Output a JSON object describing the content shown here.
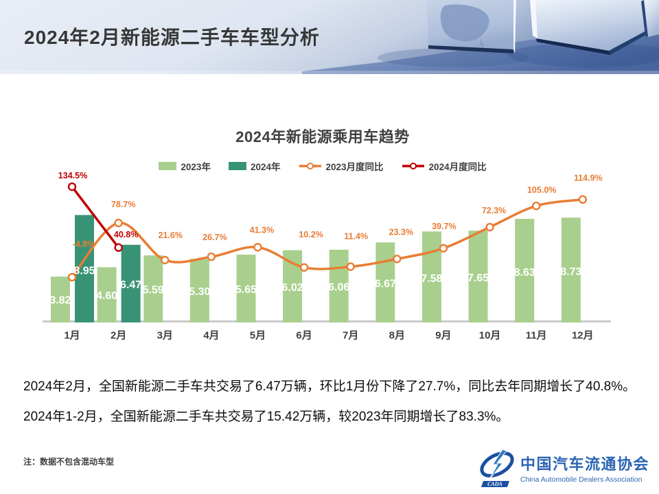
{
  "header": {
    "title": "2024年2月新能源二手车车型分析"
  },
  "chart_data": {
    "type": "bar",
    "title": "2024年新能源乘用车趋势",
    "categories": [
      "1月",
      "2月",
      "3月",
      "4月",
      "5月",
      "6月",
      "7月",
      "8月",
      "9月",
      "10月",
      "11月",
      "12月"
    ],
    "series": [
      {
        "name": "2023年",
        "type": "bar",
        "color": "#A9CF8E",
        "values": [
          3.82,
          4.6,
          5.59,
          5.3,
          5.65,
          6.02,
          6.06,
          6.67,
          7.58,
          7.65,
          8.63,
          8.73
        ]
      },
      {
        "name": "2024年",
        "type": "bar",
        "color": "#389376",
        "values": [
          8.95,
          6.47
        ]
      },
      {
        "name": "2023月度同比",
        "type": "line",
        "color": "#E87D33",
        "unit": "%",
        "values": [
          -4.8,
          78.7,
          21.6,
          26.7,
          41.3,
          10.2,
          11.4,
          23.3,
          39.7,
          72.3,
          105.0,
          114.9
        ]
      },
      {
        "name": "2024月度同比",
        "type": "line",
        "color": "#C00000",
        "unit": "%",
        "values": [
          134.5,
          40.8
        ]
      }
    ],
    "value_label_color": "#FFFFFF",
    "axis_label_color": "#404040",
    "axis_line_color": "#C9C9C9",
    "legend_position": "top",
    "grid": false,
    "ylim_bars": [
      0,
      12.5
    ],
    "ylim_pct": [
      -50,
      170
    ]
  },
  "body": {
    "paragraph1": "2024年2月，全国新能源二手车共交易了6.47万辆，环比1月份下降了27.7%，同比去年同期增长了40.8%。",
    "paragraph2": "2024年1-2月，全国新能源二手车共交易了15.42万辆，较2023年同期增长了83.3%。"
  },
  "footer": {
    "note": "注：数据不包含混动车型",
    "logo": {
      "acronym": "CADA",
      "name_cn": "中国汽车流通协会",
      "name_en": "China Automobile Dealers Association"
    }
  }
}
